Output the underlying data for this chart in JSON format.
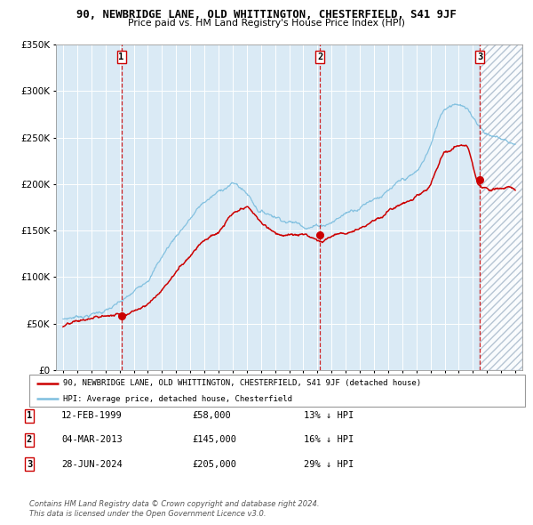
{
  "title": "90, NEWBRIDGE LANE, OLD WHITTINGTON, CHESTERFIELD, S41 9JF",
  "subtitle": "Price paid vs. HM Land Registry's House Price Index (HPI)",
  "sale_dates_num": [
    1999.12,
    2013.17,
    2024.49
  ],
  "sale_prices": [
    58000,
    145000,
    205000
  ],
  "sale_labels": [
    "1",
    "2",
    "3"
  ],
  "ylim": [
    0,
    350000
  ],
  "yticks": [
    0,
    50000,
    100000,
    150000,
    200000,
    250000,
    300000,
    350000
  ],
  "xlim_left": 1994.5,
  "xlim_right": 2027.5,
  "hpi_color": "#7fbfdf",
  "price_color": "#cc0000",
  "bg_color": "#daeaf5",
  "legend_entries": [
    "90, NEWBRIDGE LANE, OLD WHITTINGTON, CHESTERFIELD, S41 9JF (detached house)",
    "HPI: Average price, detached house, Chesterfield"
  ],
  "table_rows": [
    [
      "1",
      "12-FEB-1999",
      "£58,000",
      "13% ↓ HPI"
    ],
    [
      "2",
      "04-MAR-2013",
      "£145,000",
      "16% ↓ HPI"
    ],
    [
      "3",
      "28-JUN-2024",
      "£205,000",
      "29% ↓ HPI"
    ]
  ],
  "footnote1": "Contains HM Land Registry data © Crown copyright and database right 2024.",
  "footnote2": "This data is licensed under the Open Government Licence v3.0."
}
